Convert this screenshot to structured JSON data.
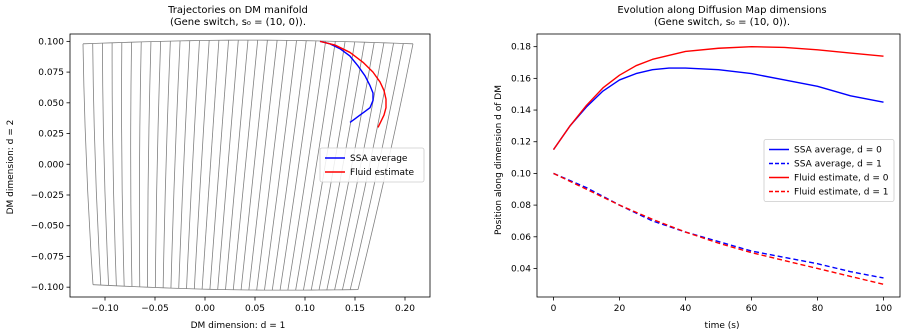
{
  "chart_data": [
    {
      "type": "line",
      "title": "Trajectories on DM manifold",
      "subtitle": "(Gene switch, s₀ = (10, 0)).",
      "xlabel": "DM dimension: d = 1",
      "ylabel": "DM dimension: d = 2",
      "xlim": [
        -0.135,
        0.225
      ],
      "ylim": [
        -0.108,
        0.106
      ],
      "xticks": [
        -0.1,
        -0.05,
        0.0,
        0.05,
        0.1,
        0.15,
        0.2
      ],
      "xtick_labels": [
        "−0.10",
        "−0.05",
        "0.00",
        "0.05",
        "0.10",
        "0.15",
        "0.20"
      ],
      "yticks": [
        -0.1,
        -0.075,
        -0.05,
        -0.025,
        0.0,
        0.025,
        0.05,
        0.075,
        0.1
      ],
      "ytick_labels": [
        "−0.100",
        "−0.075",
        "−0.050",
        "−0.025",
        "0.000",
        "0.025",
        "0.050",
        "0.075",
        "0.100"
      ],
      "grid": false,
      "manifold": {
        "color": "#808080",
        "top_edge": {
          "x": [
            -0.122,
            0.208
          ],
          "y": [
            0.098,
            0.098
          ]
        },
        "bottom_edge": {
          "x": [
            -0.112,
            0.153
          ],
          "y": [
            -0.098,
            -0.102
          ]
        },
        "line_count": 35
      },
      "series": [
        {
          "name": "SSA average",
          "color": "#0000ff",
          "x": [
            0.115,
            0.125,
            0.135,
            0.145,
            0.153,
            0.16,
            0.165,
            0.168,
            0.168,
            0.165,
            0.16,
            0.155,
            0.15,
            0.145
          ],
          "y": [
            0.1,
            0.098,
            0.094,
            0.088,
            0.08,
            0.072,
            0.064,
            0.058,
            0.052,
            0.046,
            0.043,
            0.04,
            0.037,
            0.034
          ]
        },
        {
          "name": "Fluid estimate",
          "color": "#ff0000",
          "x": [
            0.115,
            0.13,
            0.145,
            0.158,
            0.168,
            0.175,
            0.179,
            0.181,
            0.181,
            0.179,
            0.176,
            0.173
          ],
          "y": [
            0.1,
            0.097,
            0.091,
            0.083,
            0.075,
            0.067,
            0.06,
            0.053,
            0.046,
            0.04,
            0.035,
            0.03
          ]
        }
      ],
      "legend": {
        "position": "center-right",
        "entries": [
          "SSA average",
          "Fluid estimate"
        ]
      }
    },
    {
      "type": "line",
      "title": "Evolution along Diffusion Map dimensions",
      "subtitle": "(Gene switch, s₀ = (10, 0)).",
      "xlabel": "time (s)",
      "ylabel": "Position along dimension d of DM",
      "xlim": [
        -5,
        105
      ],
      "ylim": [
        0.022,
        0.188
      ],
      "xticks": [
        0,
        20,
        40,
        60,
        80,
        100
      ],
      "xtick_labels": [
        "0",
        "20",
        "40",
        "60",
        "80",
        "100"
      ],
      "yticks": [
        0.04,
        0.06,
        0.08,
        0.1,
        0.12,
        0.14,
        0.16,
        0.18
      ],
      "ytick_labels": [
        "0.04",
        "0.06",
        "0.08",
        "0.10",
        "0.12",
        "0.14",
        "0.16",
        "0.18"
      ],
      "grid": false,
      "series": [
        {
          "name": "SSA average, d = 0",
          "color": "#0000ff",
          "dashed": false,
          "x": [
            0,
            5,
            10,
            15,
            20,
            25,
            30,
            35,
            40,
            50,
            60,
            70,
            80,
            90,
            100
          ],
          "y": [
            0.115,
            0.13,
            0.142,
            0.152,
            0.159,
            0.163,
            0.1655,
            0.1665,
            0.1665,
            0.1655,
            0.163,
            0.159,
            0.155,
            0.149,
            0.145
          ]
        },
        {
          "name": "SSA average, d = 1",
          "color": "#0000ff",
          "dashed": true,
          "x": [
            0,
            10,
            20,
            30,
            40,
            50,
            60,
            70,
            80,
            90,
            100
          ],
          "y": [
            0.1,
            0.091,
            0.08,
            0.07,
            0.063,
            0.057,
            0.051,
            0.047,
            0.043,
            0.038,
            0.034
          ]
        },
        {
          "name": "Fluid estimate, d = 0",
          "color": "#ff0000",
          "dashed": false,
          "x": [
            0,
            5,
            10,
            15,
            20,
            25,
            30,
            40,
            50,
            60,
            70,
            80,
            90,
            100
          ],
          "y": [
            0.115,
            0.13,
            0.143,
            0.154,
            0.162,
            0.168,
            0.172,
            0.177,
            0.179,
            0.18,
            0.1795,
            0.178,
            0.176,
            0.174
          ]
        },
        {
          "name": "Fluid estimate, d = 1",
          "color": "#ff0000",
          "dashed": true,
          "x": [
            0,
            10,
            20,
            30,
            40,
            50,
            60,
            70,
            80,
            90,
            100
          ],
          "y": [
            0.1,
            0.09,
            0.08,
            0.071,
            0.063,
            0.056,
            0.05,
            0.045,
            0.04,
            0.035,
            0.03
          ]
        }
      ],
      "legend": {
        "position": "center-right",
        "entries": [
          "SSA average, d = 0",
          "SSA average, d = 1",
          "Fluid estimate, d = 0",
          "Fluid estimate, d = 1"
        ]
      }
    }
  ]
}
